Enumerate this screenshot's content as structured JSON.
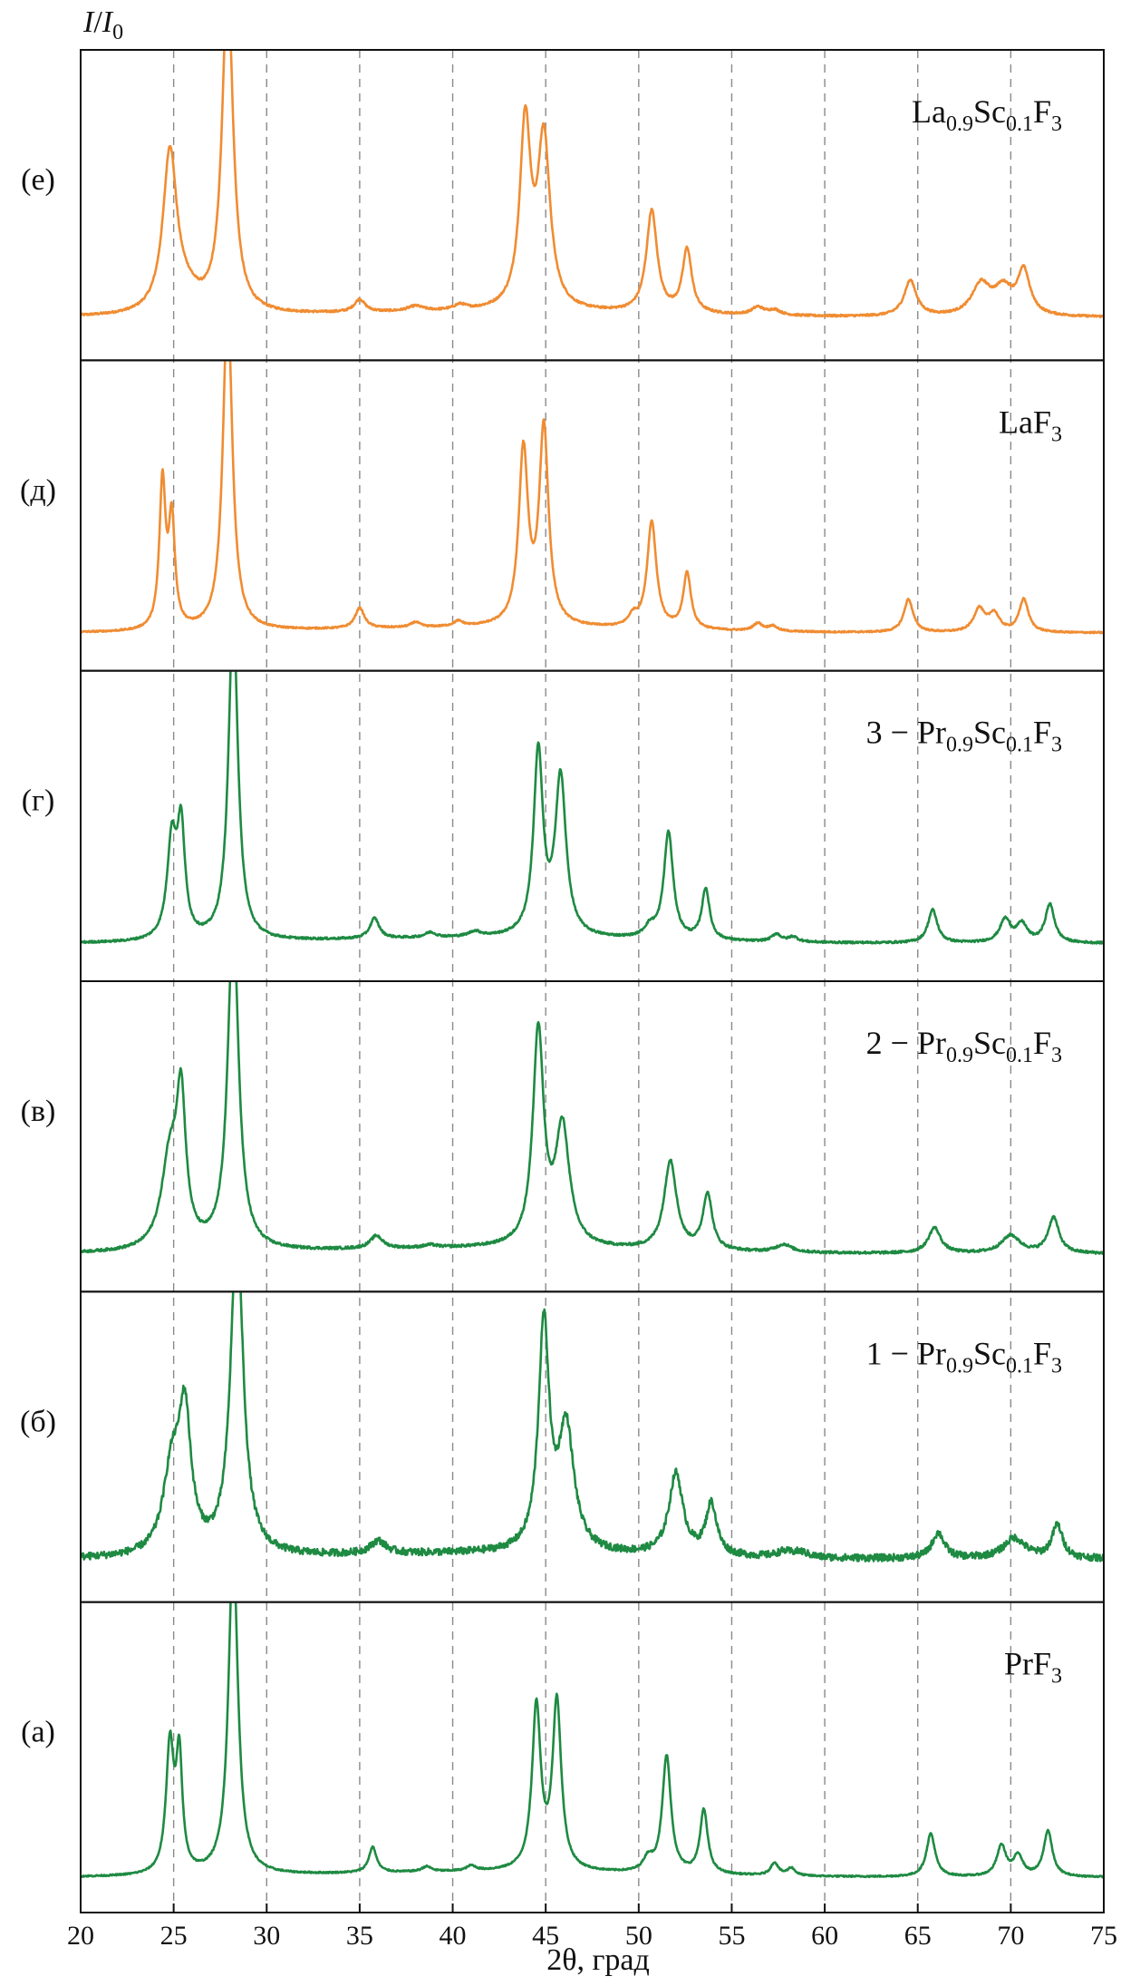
{
  "chart_data": {
    "type": "line",
    "ylabel_italic": "I",
    "ylabel_slash": "/",
    "ylabel_base": "I",
    "ylabel_sub": "0",
    "xlabel": "2θ, град",
    "xlim": [
      20,
      75
    ],
    "xticks": [
      20,
      25,
      30,
      35,
      40,
      45,
      50,
      55,
      60,
      65,
      70,
      75
    ],
    "gridlines_x": [
      25,
      30,
      35,
      40,
      45,
      50,
      55,
      60,
      65,
      70
    ],
    "colors": {
      "orange": "#f08c32",
      "green": "#1e8a42",
      "grid": "#8a8a8a",
      "axis": "#111111"
    },
    "panels": [
      {
        "tag": "(е)",
        "color": "orange",
        "label": [
          {
            "t": "La",
            "sub": false
          },
          {
            "t": "0.9",
            "sub": true
          },
          {
            "t": "Sc",
            "sub": false
          },
          {
            "t": "0.1",
            "sub": true
          },
          {
            "t": "F",
            "sub": false
          },
          {
            "t": "3",
            "sub": true
          }
        ],
        "baseline": 0.14,
        "noise": 0.004,
        "peaks": [
          {
            "x": 24.8,
            "h": 0.63,
            "w": 0.45
          },
          {
            "x": 25.7,
            "h": 0.06,
            "w": 0.8
          },
          {
            "x": 27.9,
            "h": 1.3,
            "w": 0.35
          },
          {
            "x": 35.0,
            "h": 0.05,
            "w": 0.35
          },
          {
            "x": 38.0,
            "h": 0.02,
            "w": 0.5
          },
          {
            "x": 40.4,
            "h": 0.02,
            "w": 0.4
          },
          {
            "x": 43.9,
            "h": 0.72,
            "w": 0.35
          },
          {
            "x": 44.9,
            "h": 0.66,
            "w": 0.4
          },
          {
            "x": 50.7,
            "h": 0.4,
            "w": 0.35
          },
          {
            "x": 52.6,
            "h": 0.25,
            "w": 0.3
          },
          {
            "x": 56.4,
            "h": 0.03,
            "w": 0.4
          },
          {
            "x": 57.3,
            "h": 0.02,
            "w": 0.4
          },
          {
            "x": 64.6,
            "h": 0.14,
            "w": 0.4
          },
          {
            "x": 68.4,
            "h": 0.12,
            "w": 0.6
          },
          {
            "x": 69.6,
            "h": 0.1,
            "w": 0.6
          },
          {
            "x": 70.7,
            "h": 0.17,
            "w": 0.4
          }
        ]
      },
      {
        "tag": "(д)",
        "color": "orange",
        "label": [
          {
            "t": "LaF",
            "sub": false
          },
          {
            "t": "3",
            "sub": true
          }
        ],
        "baseline": 0.12,
        "noise": 0.003,
        "peaks": [
          {
            "x": 24.4,
            "h": 0.57,
            "w": 0.2
          },
          {
            "x": 24.9,
            "h": 0.42,
            "w": 0.2
          },
          {
            "x": 27.9,
            "h": 1.3,
            "w": 0.3
          },
          {
            "x": 35.0,
            "h": 0.08,
            "w": 0.3
          },
          {
            "x": 38.0,
            "h": 0.02,
            "w": 0.3
          },
          {
            "x": 40.3,
            "h": 0.02,
            "w": 0.3
          },
          {
            "x": 43.8,
            "h": 0.68,
            "w": 0.3
          },
          {
            "x": 44.9,
            "h": 0.77,
            "w": 0.3
          },
          {
            "x": 49.7,
            "h": 0.04,
            "w": 0.3
          },
          {
            "x": 50.7,
            "h": 0.42,
            "w": 0.3
          },
          {
            "x": 52.6,
            "h": 0.22,
            "w": 0.25
          },
          {
            "x": 56.4,
            "h": 0.03,
            "w": 0.3
          },
          {
            "x": 57.2,
            "h": 0.02,
            "w": 0.3
          },
          {
            "x": 64.5,
            "h": 0.13,
            "w": 0.3
          },
          {
            "x": 68.3,
            "h": 0.09,
            "w": 0.35
          },
          {
            "x": 69.1,
            "h": 0.07,
            "w": 0.35
          },
          {
            "x": 70.7,
            "h": 0.13,
            "w": 0.3
          }
        ]
      },
      {
        "tag": "(г)",
        "color": "green",
        "label": [
          {
            "t": "3 − Pr",
            "sub": false
          },
          {
            "t": "0.9",
            "sub": true
          },
          {
            "t": "Sc",
            "sub": false
          },
          {
            "t": "0.1",
            "sub": true
          },
          {
            "t": "F",
            "sub": false
          },
          {
            "t": "3",
            "sub": true
          }
        ],
        "baseline": 0.12,
        "noise": 0.004,
        "peaks": [
          {
            "x": 24.9,
            "h": 0.38,
            "w": 0.3
          },
          {
            "x": 25.4,
            "h": 0.42,
            "w": 0.25
          },
          {
            "x": 28.2,
            "h": 1.3,
            "w": 0.3
          },
          {
            "x": 35.8,
            "h": 0.08,
            "w": 0.3
          },
          {
            "x": 38.8,
            "h": 0.02,
            "w": 0.35
          },
          {
            "x": 41.2,
            "h": 0.02,
            "w": 0.4
          },
          {
            "x": 44.6,
            "h": 0.72,
            "w": 0.3
          },
          {
            "x": 45.8,
            "h": 0.62,
            "w": 0.35
          },
          {
            "x": 50.6,
            "h": 0.04,
            "w": 0.35
          },
          {
            "x": 51.6,
            "h": 0.42,
            "w": 0.3
          },
          {
            "x": 53.6,
            "h": 0.2,
            "w": 0.25
          },
          {
            "x": 57.4,
            "h": 0.03,
            "w": 0.3
          },
          {
            "x": 58.3,
            "h": 0.02,
            "w": 0.3
          },
          {
            "x": 65.8,
            "h": 0.13,
            "w": 0.3
          },
          {
            "x": 69.7,
            "h": 0.09,
            "w": 0.35
          },
          {
            "x": 70.6,
            "h": 0.07,
            "w": 0.35
          },
          {
            "x": 72.1,
            "h": 0.15,
            "w": 0.3
          }
        ]
      },
      {
        "tag": "(в)",
        "color": "green",
        "label": [
          {
            "t": "2 − Pr",
            "sub": false
          },
          {
            "t": "0.9",
            "sub": true
          },
          {
            "t": "Sc",
            "sub": false
          },
          {
            "t": "0.1",
            "sub": true
          },
          {
            "t": "F",
            "sub": false
          },
          {
            "t": "3",
            "sub": true
          }
        ],
        "baseline": 0.12,
        "noise": 0.005,
        "peaks": [
          {
            "x": 24.8,
            "h": 0.35,
            "w": 0.55
          },
          {
            "x": 25.4,
            "h": 0.54,
            "w": 0.3
          },
          {
            "x": 28.2,
            "h": 1.3,
            "w": 0.35
          },
          {
            "x": 35.9,
            "h": 0.05,
            "w": 0.4
          },
          {
            "x": 38.8,
            "h": 0.01,
            "w": 0.4
          },
          {
            "x": 44.6,
            "h": 0.84,
            "w": 0.35
          },
          {
            "x": 45.9,
            "h": 0.46,
            "w": 0.45
          },
          {
            "x": 51.7,
            "h": 0.35,
            "w": 0.4
          },
          {
            "x": 53.7,
            "h": 0.22,
            "w": 0.3
          },
          {
            "x": 57.8,
            "h": 0.03,
            "w": 0.5
          },
          {
            "x": 65.9,
            "h": 0.1,
            "w": 0.4
          },
          {
            "x": 70.0,
            "h": 0.07,
            "w": 0.6
          },
          {
            "x": 72.3,
            "h": 0.14,
            "w": 0.35
          }
        ]
      },
      {
        "tag": "(б)",
        "color": "green",
        "label": [
          {
            "t": "1 − Pr",
            "sub": false
          },
          {
            "t": "0.9",
            "sub": true
          },
          {
            "t": "Sc",
            "sub": false
          },
          {
            "t": "0.1",
            "sub": true
          },
          {
            "t": "F",
            "sub": false
          },
          {
            "t": "3",
            "sub": true
          }
        ],
        "baseline": 0.14,
        "noise": 0.014,
        "peaks": [
          {
            "x": 24.9,
            "h": 0.32,
            "w": 0.55
          },
          {
            "x": 25.6,
            "h": 0.52,
            "w": 0.4
          },
          {
            "x": 28.4,
            "h": 1.3,
            "w": 0.4
          },
          {
            "x": 36.0,
            "h": 0.05,
            "w": 0.5
          },
          {
            "x": 44.9,
            "h": 0.88,
            "w": 0.35
          },
          {
            "x": 46.1,
            "h": 0.48,
            "w": 0.5
          },
          {
            "x": 52.0,
            "h": 0.32,
            "w": 0.45
          },
          {
            "x": 53.9,
            "h": 0.2,
            "w": 0.35
          },
          {
            "x": 57.8,
            "h": 0.02,
            "w": 0.5
          },
          {
            "x": 58.7,
            "h": 0.02,
            "w": 0.5
          },
          {
            "x": 66.1,
            "h": 0.1,
            "w": 0.4
          },
          {
            "x": 70.2,
            "h": 0.08,
            "w": 0.7
          },
          {
            "x": 72.5,
            "h": 0.13,
            "w": 0.35
          }
        ]
      },
      {
        "tag": "(а)",
        "color": "green",
        "label": [
          {
            "t": "PrF",
            "sub": false
          },
          {
            "t": "3",
            "sub": true
          }
        ],
        "baseline": 0.11,
        "noise": 0.003,
        "peaks": [
          {
            "x": 24.8,
            "h": 0.5,
            "w": 0.25
          },
          {
            "x": 25.3,
            "h": 0.44,
            "w": 0.2
          },
          {
            "x": 28.2,
            "h": 1.3,
            "w": 0.3
          },
          {
            "x": 35.7,
            "h": 0.1,
            "w": 0.25
          },
          {
            "x": 38.6,
            "h": 0.02,
            "w": 0.3
          },
          {
            "x": 41.0,
            "h": 0.02,
            "w": 0.3
          },
          {
            "x": 44.5,
            "h": 0.64,
            "w": 0.28
          },
          {
            "x": 45.6,
            "h": 0.66,
            "w": 0.28
          },
          {
            "x": 50.5,
            "h": 0.05,
            "w": 0.3
          },
          {
            "x": 51.5,
            "h": 0.46,
            "w": 0.28
          },
          {
            "x": 53.5,
            "h": 0.25,
            "w": 0.25
          },
          {
            "x": 57.3,
            "h": 0.05,
            "w": 0.25
          },
          {
            "x": 58.2,
            "h": 0.03,
            "w": 0.25
          },
          {
            "x": 65.7,
            "h": 0.17,
            "w": 0.28
          },
          {
            "x": 69.5,
            "h": 0.12,
            "w": 0.3
          },
          {
            "x": 70.4,
            "h": 0.08,
            "w": 0.3
          },
          {
            "x": 72.0,
            "h": 0.18,
            "w": 0.28
          }
        ]
      }
    ]
  }
}
